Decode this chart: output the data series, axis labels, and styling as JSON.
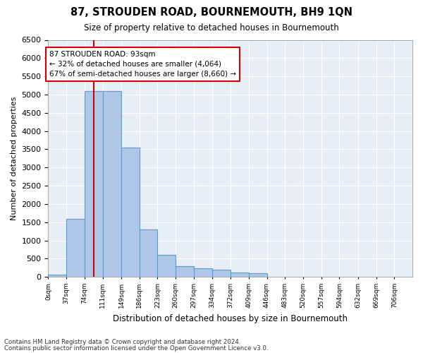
{
  "title": "87, STROUDEN ROAD, BOURNEMOUTH, BH9 1QN",
  "subtitle": "Size of property relative to detached houses in Bournemouth",
  "xlabel": "Distribution of detached houses by size in Bournemouth",
  "ylabel": "Number of detached properties",
  "annotation_line1": "87 STROUDEN ROAD: 93sqm",
  "annotation_line2": "← 32% of detached houses are smaller (4,064)",
  "annotation_line3": "67% of semi-detached houses are larger (8,660) →",
  "property_size": 93,
  "bar_color": "#aec6e8",
  "bar_edge_color": "#5a9fd4",
  "line_color": "#cc0000",
  "annotation_box_color": "#ffffff",
  "annotation_box_edge": "#cc0000",
  "background_color": "#e8eef5",
  "ylim": [
    0,
    6500
  ],
  "yticks": [
    0,
    500,
    1000,
    1500,
    2000,
    2500,
    3000,
    3500,
    4000,
    4500,
    5000,
    5500,
    6000,
    6500
  ],
  "bin_edges": [
    0,
    37,
    74,
    111,
    149,
    186,
    223,
    260,
    297,
    334,
    372,
    409,
    446,
    483,
    520,
    557,
    594,
    632,
    669,
    706,
    743
  ],
  "bar_heights": [
    55,
    1600,
    5100,
    5100,
    3550,
    1300,
    600,
    300,
    230,
    200,
    120,
    100,
    0,
    0,
    0,
    0,
    0,
    0,
    0,
    0
  ],
  "footnote1": "Contains HM Land Registry data © Crown copyright and database right 2024.",
  "footnote2": "Contains public sector information licensed under the Open Government Licence v3.0."
}
